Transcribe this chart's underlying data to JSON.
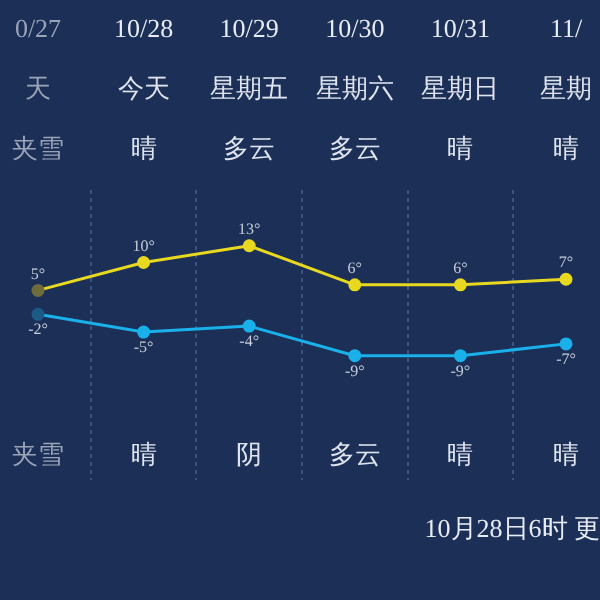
{
  "chart_data": {
    "type": "line",
    "categories": [
      "0/27",
      "10/28",
      "10/29",
      "10/30",
      "10/31",
      "11/"
    ],
    "series": [
      {
        "color": "#e8d820",
        "values": [
          5,
          10,
          13,
          6,
          6,
          7
        ],
        "value_labels": [
          "5°",
          "10°",
          "13°",
          "6°",
          "6°",
          "7°"
        ],
        "colors": [
          "#6e6c3c",
          "#e8d820",
          "#e8d820",
          "#e8d820",
          "#e8d820",
          "#e8d820"
        ]
      },
      {
        "color": "#1ab0ea",
        "values": [
          -2,
          -5,
          -4,
          -9,
          -9,
          -7
        ],
        "value_labels": [
          "-2°",
          "-5°",
          "-4°",
          "-9°",
          "-9°",
          "-7°"
        ],
        "axis": "y2",
        "colors": [
          "#1e5a86",
          "#1ab0ea",
          "#1ab0ea",
          "#1ab0ea",
          "#1ab0ea",
          "#1ab0ea"
        ]
      }
    ],
    "ylim": [
      -29,
      23
    ],
    "y2lim": [
      -30,
      19
    ],
    "annotations": [
      "天",
      "今天",
      "星期五",
      "星期六",
      "星期日",
      "星期",
      "夹雪",
      "晴",
      "多云",
      "多云",
      "晴",
      "晴",
      "夹雪",
      "晴",
      "阴",
      "多云",
      "晴",
      "晴",
      "10月28日6时 更"
    ],
    "grid": "x",
    "marker": "circle",
    "line_style": "solid",
    "legend": false,
    "tick_labels": "x"
  }
}
